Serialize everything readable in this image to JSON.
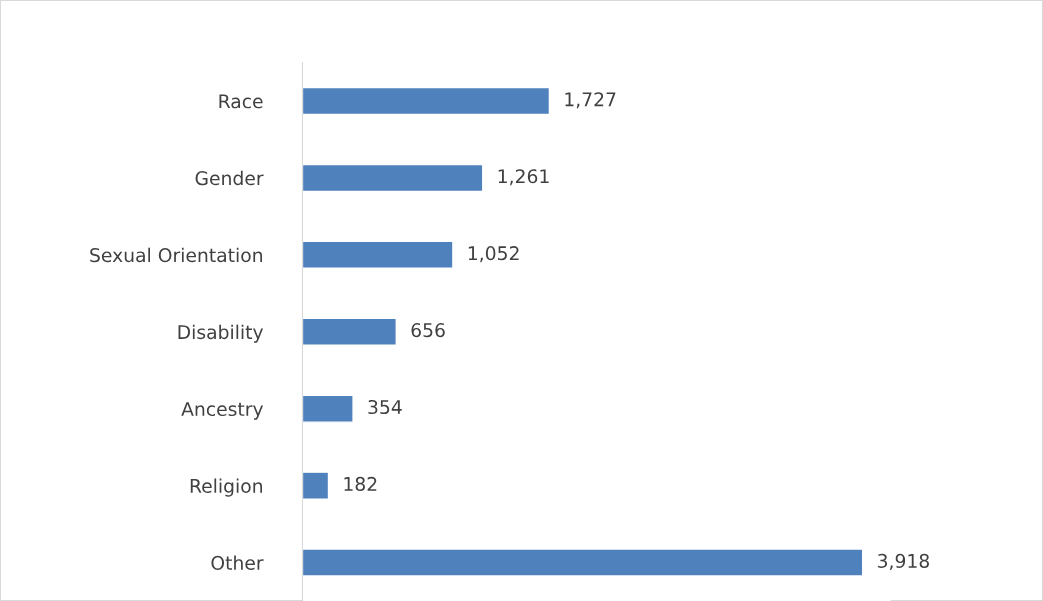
{
  "chart_data": {
    "type": "bar",
    "orientation": "horizontal",
    "categories": [
      "Race",
      "Gender",
      "Sexual Orientation",
      "Disability",
      "Ancestry",
      "Religion",
      "Other"
    ],
    "values": [
      1727,
      1261,
      1052,
      656,
      354,
      182,
      3918
    ],
    "color": "#4f81bd",
    "value_labels": [
      "1,727",
      "1,261",
      "1,052",
      "656",
      "354",
      "182",
      "3,918"
    ],
    "grid": false,
    "legend": false
  }
}
